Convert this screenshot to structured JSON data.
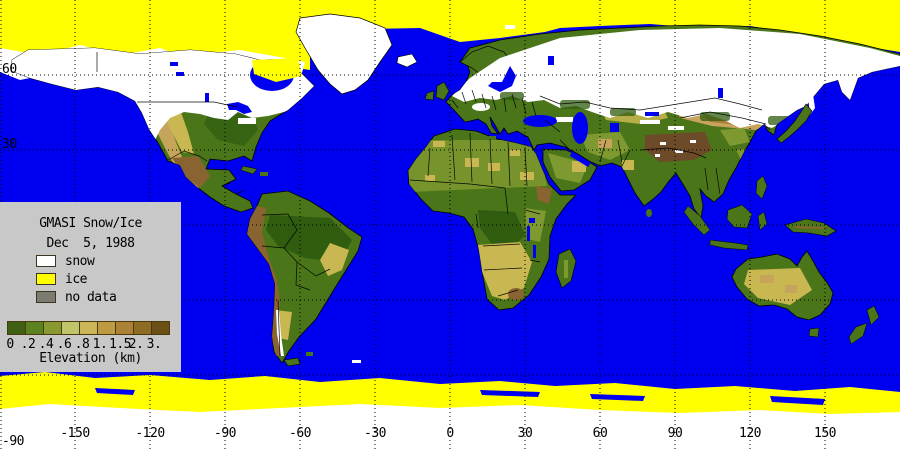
{
  "map": {
    "panel": {
      "title": "GMASI Snow/Ice",
      "date": "Dec  5, 1988",
      "legend_items": [
        {
          "label": "snow",
          "color": "#FFFFFF"
        },
        {
          "label": "ice",
          "color": "#FFFF00"
        },
        {
          "label": "no data",
          "color": "#7B7B70"
        }
      ],
      "colorbar": {
        "title": "Elevation (km)",
        "tick_labels": [
          "0",
          ".2",
          ".4",
          ".6",
          ".8",
          "1.",
          "1.5",
          "2.",
          "3."
        ],
        "colors": [
          "#3D6111",
          "#5C8121",
          "#87992F",
          "#BFC56A",
          "#CBB757",
          "#BD9B41",
          "#AC8136",
          "#8F6C24",
          "#6C4F16"
        ]
      }
    },
    "axes": {
      "lon_ticks": [
        {
          "label": "-150",
          "lon": -150
        },
        {
          "label": "-120",
          "lon": -120
        },
        {
          "label": "-90",
          "lon": -90
        },
        {
          "label": "-60",
          "lon": -60
        },
        {
          "label": "-30",
          "lon": -30
        },
        {
          "label": "0",
          "lon": 0
        },
        {
          "label": "30",
          "lon": 30
        },
        {
          "label": "60",
          "lon": 60
        },
        {
          "label": "90",
          "lon": 90
        },
        {
          "label": "120",
          "lon": 120
        },
        {
          "label": "150",
          "lon": 150
        }
      ],
      "lat_ticks": [
        {
          "label": "60",
          "lat": 60
        },
        {
          "label": "30",
          "lat": 30
        },
        {
          "label": "-90",
          "lat": -90
        }
      ]
    },
    "grid": {
      "lon_lines": [
        -180,
        -150,
        -120,
        -90,
        -60,
        -30,
        0,
        30,
        60,
        90,
        120,
        150
      ],
      "lat_lines": [
        60,
        30,
        0,
        -30,
        -60
      ]
    },
    "colors": {
      "ocean": "#0000F0",
      "ice": "#FFFF00",
      "snow": "#FFFFFF",
      "land": "#4A7519",
      "darkgreen": "#2F5C0F",
      "olive": "#7E9930",
      "khaki": "#C9B852",
      "tan": "#C7A45C",
      "brown": "#8A6430",
      "darkbrown": "#6E4B28",
      "panel": "#C8C8C8",
      "grid": "#000000"
    }
  }
}
